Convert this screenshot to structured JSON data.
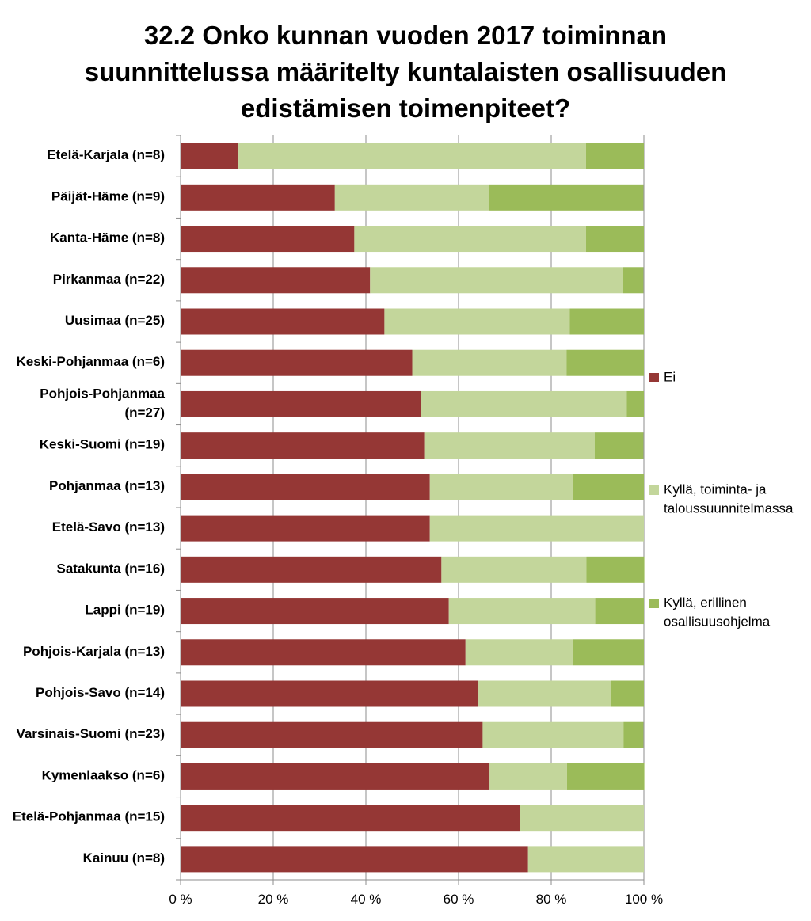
{
  "chart_data": {
    "type": "bar",
    "orientation": "horizontal",
    "stacked": true,
    "percent_stacked": true,
    "title_lines": [
      "32.2 Onko kunnan vuoden 2017 toiminnan",
      "suunnittelussa määritelty kuntalaisten osallisuuden",
      "edistämisen toimenpiteet?"
    ],
    "xlabel": "",
    "ylabel": "",
    "xlim": [
      0,
      100
    ],
    "xticks": [
      0,
      20,
      40,
      60,
      80,
      100
    ],
    "xtick_labels": [
      "0 %",
      "20 %",
      "40 %",
      "60 %",
      "80 %",
      "100 %"
    ],
    "grid": "vertical",
    "legend_position": "right",
    "categories": [
      [
        "Etelä-Karjala (n=8)"
      ],
      [
        "Päijät-Häme (n=9)"
      ],
      [
        "Kanta-Häme (n=8)"
      ],
      [
        "Pirkanmaa (n=22)"
      ],
      [
        "Uusimaa (n=25)"
      ],
      [
        "Keski-Pohjanmaa (n=6)"
      ],
      [
        "Pohjois-Pohjanmaa",
        "(n=27)"
      ],
      [
        "Keski-Suomi (n=19)"
      ],
      [
        "Pohjanmaa (n=13)"
      ],
      [
        "Etelä-Savo (n=13)"
      ],
      [
        "Satakunta (n=16)"
      ],
      [
        "Lappi (n=19)"
      ],
      [
        "Pohjois-Karjala (n=13)"
      ],
      [
        "Pohjois-Savo (n=14)"
      ],
      [
        "Varsinais-Suomi (n=23)"
      ],
      [
        "Kymenlaakso (n=6)"
      ],
      [
        "Etelä-Pohjanmaa (n=15)"
      ],
      [
        "Kainuu (n=8)"
      ]
    ],
    "series": [
      {
        "name": [
          "Ei"
        ],
        "color": "#953735",
        "values": [
          12.5,
          33.3,
          37.5,
          40.9,
          44.0,
          50.0,
          51.9,
          52.6,
          53.8,
          53.8,
          56.3,
          57.9,
          61.5,
          64.3,
          65.2,
          66.7,
          73.3,
          75.0
        ]
      },
      {
        "name": [
          "Kyllä, toiminta- ja",
          "taloussuunnitelmassa"
        ],
        "color": "#c3d69b",
        "values": [
          75.0,
          33.3,
          50.0,
          54.5,
          40.0,
          33.3,
          44.4,
          36.8,
          30.8,
          46.2,
          31.3,
          31.6,
          23.1,
          28.6,
          30.4,
          16.7,
          26.7,
          25.0
        ]
      },
      {
        "name": [
          "Kyllä, erillinen",
          "osallisuusohjelma"
        ],
        "color": "#9bbb59",
        "values": [
          12.5,
          33.3,
          12.5,
          4.5,
          16.0,
          16.7,
          3.7,
          10.5,
          15.4,
          0.0,
          12.5,
          10.5,
          15.4,
          7.1,
          4.3,
          16.7,
          0.0,
          0.0
        ]
      }
    ]
  }
}
